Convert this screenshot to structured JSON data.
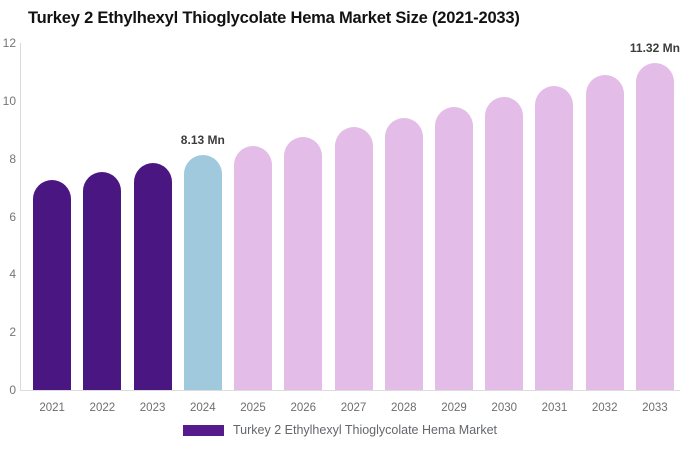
{
  "chart_data": {
    "type": "bar",
    "title": "Turkey 2 Ethylhexyl Thioglycolate Hema Market Size (2021-2033)",
    "categories": [
      "2021",
      "2022",
      "2023",
      "2024",
      "2025",
      "2026",
      "2027",
      "2028",
      "2029",
      "2030",
      "2031",
      "2032",
      "2033"
    ],
    "values": [
      7.28,
      7.55,
      7.84,
      8.13,
      8.43,
      8.75,
      9.08,
      9.42,
      9.77,
      10.14,
      10.52,
      10.91,
      11.32
    ],
    "point_colors": [
      "#4A1681",
      "#4A1681",
      "#4A1681",
      "#A0C9DE",
      "#E3BCE8",
      "#E3BCE8",
      "#E3BCE8",
      "#E3BCE8",
      "#E3BCE8",
      "#E3BCE8",
      "#E3BCE8",
      "#E3BCE8",
      "#E3BCE8"
    ],
    "point_labels": [
      "",
      "",
      "",
      "8.13 Mn",
      "",
      "",
      "",
      "",
      "",
      "",
      "",
      "",
      "11.32 Mn"
    ],
    "xlabel": "",
    "ylabel": "",
    "ylim": [
      0,
      12
    ],
    "yticks": [
      0,
      2,
      4,
      6,
      8,
      10,
      12
    ],
    "grid": false,
    "legend_position": "bottom",
    "legend": {
      "label": "Turkey 2 Ethylhexyl Thioglycolate Hema Market",
      "swatch_color": "#551A8C"
    },
    "colors": {
      "historical_bar": "#4A1681",
      "current_year_bar": "#A0C9DE",
      "forecast_bar": "#E3BCE8",
      "axis_line": "#DADADA",
      "tick_text": "#757575",
      "data_label_text": "#3C3C3C",
      "title_text": "#121212",
      "legend_text": "#63676B"
    }
  }
}
